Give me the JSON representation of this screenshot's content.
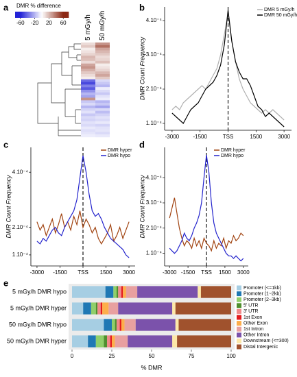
{
  "chart_data": [
    {
      "type": "heatmap",
      "panel": "a",
      "colorbar_title": "DMR % difference",
      "colorbar_lim": [
        -75,
        75
      ],
      "colorbar_ticks": [
        -60,
        -20,
        20,
        60
      ],
      "columns": [
        "5 mGy/h",
        "50 mGy/h"
      ],
      "values": [
        [
          10,
          30
        ],
        [
          15,
          40
        ],
        [
          5,
          25
        ],
        [
          8,
          20
        ],
        [
          12,
          15
        ],
        [
          20,
          10
        ],
        [
          18,
          12
        ],
        [
          10,
          18
        ],
        [
          25,
          5
        ],
        [
          30,
          8
        ],
        [
          22,
          12
        ],
        [
          15,
          20
        ],
        [
          10,
          25
        ],
        [
          5,
          15
        ],
        [
          -40,
          -10
        ],
        [
          -50,
          -15
        ],
        [
          -35,
          -20
        ],
        [
          -45,
          -5
        ],
        [
          -30,
          -10
        ],
        [
          -20,
          -15
        ],
        [
          -25,
          -8
        ],
        [
          30,
          -5
        ],
        [
          -15,
          -20
        ],
        [
          -10,
          -15
        ],
        [
          -20,
          -25
        ],
        [
          -12,
          -10
        ],
        [
          -8,
          -18
        ],
        [
          -15,
          -12
        ],
        [
          -10,
          -8
        ],
        [
          -12,
          -10
        ],
        [
          -8,
          -6
        ],
        [
          -10,
          -12
        ],
        [
          -6,
          -8
        ],
        [
          -9,
          -7
        ],
        [
          -7,
          -10
        ],
        [
          -5,
          -6
        ]
      ]
    },
    {
      "type": "line",
      "panel": "b",
      "y_label": "DMR Count Frequency",
      "legend": "upper right",
      "vline": 0,
      "x": [
        -3000,
        -2800,
        -2600,
        -2400,
        -2200,
        -2000,
        -1800,
        -1600,
        -1400,
        -1200,
        -1000,
        -800,
        -600,
        -400,
        -200,
        0,
        200,
        400,
        600,
        800,
        1000,
        1200,
        1400,
        1600,
        1800,
        2000,
        2200,
        2400,
        2600,
        2800,
        3000
      ],
      "xlim": [
        -3400,
        3400
      ],
      "xticks": [
        -3000,
        -1500,
        {
          "value": 0,
          "label": "TSS"
        },
        1500,
        3000
      ],
      "ylim": [
        8e-05,
        0.00044
      ],
      "yticks": [
        {
          "value": 0.0001,
          "label": "1.10⁻⁴"
        },
        {
          "value": 0.0002,
          "label": "2.10⁻⁴"
        },
        {
          "value": 0.0003,
          "label": "3.10⁻⁴"
        },
        {
          "value": 0.0004,
          "label": "4.10⁻⁴"
        }
      ],
      "series": [
        {
          "name": "DMR 5 mGy/h",
          "color": "#b0b0b0",
          "values": [
            0.00014,
            0.00015,
            0.00014,
            0.00016,
            0.00017,
            0.00018,
            0.00019,
            0.0002,
            0.00021,
            0.0002,
            0.00022,
            0.00024,
            0.00026,
            0.0003,
            0.00036,
            0.00042,
            0.00034,
            0.00028,
            0.00023,
            0.0002,
            0.00018,
            0.00016,
            0.00015,
            0.00014,
            0.00013,
            0.00014,
            0.00013,
            0.00014,
            0.00013,
            0.00012,
            0.00011
          ]
        },
        {
          "name": "DMR 50 mGy/h",
          "color": "#000000",
          "values": [
            0.00013,
            0.00012,
            0.00011,
            0.0001,
            0.00012,
            0.00014,
            0.00015,
            0.00016,
            0.00018,
            0.0002,
            0.00021,
            0.00022,
            0.00024,
            0.00027,
            0.00033,
            0.00043,
            0.00034,
            0.00028,
            0.00025,
            0.00023,
            0.00023,
            0.00021,
            0.00018,
            0.00015,
            0.00014,
            0.00012,
            0.00013,
            0.00012,
            0.00011,
            0.0001,
            9e-05
          ]
        }
      ]
    },
    {
      "type": "line",
      "panel": "c",
      "y_label": "DMR Count Frequency",
      "legend": "upper right",
      "vline": 0,
      "x": [
        -3000,
        -2800,
        -2600,
        -2400,
        -2200,
        -2000,
        -1800,
        -1600,
        -1400,
        -1200,
        -1000,
        -800,
        -600,
        -400,
        -200,
        0,
        200,
        400,
        600,
        800,
        1000,
        1200,
        1400,
        1600,
        1800,
        2000,
        2200,
        2400,
        2600,
        2800,
        3000
      ],
      "xlim": [
        -3400,
        3400
      ],
      "xticks": [
        -3000,
        -1500,
        {
          "value": 0,
          "label": "TSS"
        },
        1500,
        3000
      ],
      "ylim": [
        6e-05,
        0.00049
      ],
      "yticks": [
        {
          "value": 0.0001,
          "label": "1.10⁻⁴"
        },
        {
          "value": 0.0002,
          "label": "2.10⁻⁴"
        },
        {
          "value": 0.0004,
          "label": "4.10⁻⁴"
        }
      ],
      "series": [
        {
          "name": "DMR hyper",
          "color": "#a0420f",
          "values": [
            0.00022,
            0.00019,
            0.00021,
            0.00017,
            0.0002,
            0.00023,
            0.00018,
            0.00021,
            0.00025,
            0.0002,
            0.00022,
            0.00019,
            0.00024,
            0.00021,
            0.00026,
            0.0002,
            0.00023,
            0.00021,
            0.00018,
            0.0002,
            0.00016,
            0.00014,
            0.00016,
            0.00018,
            0.00021,
            0.00015,
            0.00017,
            0.0002,
            0.00016,
            0.00019,
            0.00022
          ]
        },
        {
          "name": "DMR hypo",
          "color": "#2222cc",
          "values": [
            0.00015,
            0.00014,
            0.00016,
            0.00015,
            0.00017,
            0.00019,
            0.0002,
            0.00018,
            0.00017,
            0.0002,
            0.00022,
            0.00024,
            0.00026,
            0.0003,
            0.00038,
            0.00046,
            0.0004,
            0.00032,
            0.00026,
            0.00024,
            0.00025,
            0.00023,
            0.0002,
            0.00018,
            0.00016,
            0.00015,
            0.00014,
            0.00013,
            0.00012,
            0.0001,
            9e-05
          ]
        }
      ]
    },
    {
      "type": "line",
      "panel": "d",
      "y_label": "DMR Count Frequency",
      "legend": "upper right",
      "vline": 0,
      "x": [
        -3000,
        -2800,
        -2600,
        -2400,
        -2200,
        -2000,
        -1800,
        -1600,
        -1400,
        -1200,
        -1000,
        -800,
        -600,
        -400,
        -200,
        0,
        200,
        400,
        600,
        800,
        1000,
        1200,
        1400,
        1600,
        1800,
        2000,
        2200,
        2400,
        2600,
        2800,
        3000
      ],
      "xlim": [
        -3400,
        3400
      ],
      "xticks": [
        -3000,
        -1500,
        {
          "value": 0,
          "label": "TSS"
        },
        1500,
        3000
      ],
      "ylim": [
        5e-05,
        0.00052
      ],
      "yticks": [
        {
          "value": 0.0001,
          "label": "1.10⁻⁴"
        },
        {
          "value": 0.0002,
          "label": "2.10⁻⁴"
        },
        {
          "value": 0.0003,
          "label": "3.10⁻⁴"
        },
        {
          "value": 0.0004,
          "label": "4.10⁻⁴"
        }
      ],
      "series": [
        {
          "name": "DMR hyper",
          "color": "#a0420f",
          "values": [
            0.00024,
            0.00028,
            0.00032,
            0.00026,
            0.0002,
            0.00016,
            0.00013,
            0.00015,
            0.00014,
            0.00012,
            0.00016,
            0.00013,
            0.00015,
            0.00012,
            0.00016,
            0.00014,
            0.00013,
            0.00011,
            0.00015,
            0.00012,
            0.00014,
            0.00013,
            0.00016,
            0.00012,
            0.00015,
            0.00014,
            0.00017,
            0.00015,
            0.00016,
            0.00018,
            0.00017
          ]
        },
        {
          "name": "DMR hypo",
          "color": "#2222cc",
          "values": [
            0.00012,
            0.00011,
            0.0001,
            0.00011,
            0.00013,
            0.00015,
            0.00018,
            0.00016,
            0.00015,
            0.00017,
            0.0002,
            0.00022,
            0.00025,
            0.0003,
            0.0004,
            0.00049,
            0.00042,
            0.0003,
            0.00022,
            0.00018,
            0.00016,
            0.00014,
            0.00012,
            0.0001,
            9e-05,
            9e-05,
            8e-05,
            9e-05,
            8e-05,
            7e-05,
            8e-05
          ]
        }
      ]
    },
    {
      "type": "stacked_barh",
      "panel": "e",
      "x_label": "% DMR",
      "categories": [
        "5 mGy/h DMR hypo",
        "5 mGy/h DMR hyper",
        "50 mGy/h DMR hypo",
        "50 mGy/h DMR hyper"
      ],
      "xlim": [
        0,
        100
      ],
      "xticks": [
        0,
        25,
        50,
        75,
        100
      ],
      "series": [
        {
          "name": "Promoter (<=1kb)",
          "color": "#a6cee3",
          "values": [
            21,
            7,
            20,
            10
          ]
        },
        {
          "name": "Promoter (1~2kb)",
          "color": "#1f78b4",
          "values": [
            5,
            5,
            5,
            5
          ]
        },
        {
          "name": "Promoter (2~3kb)",
          "color": "#8fcf6a",
          "values": [
            2,
            3,
            2,
            5
          ]
        },
        {
          "name": "5' UTR",
          "color": "#4f8f2f",
          "values": [
            1,
            1,
            1,
            2
          ]
        },
        {
          "name": "3' UTR",
          "color": "#f08a8a",
          "values": [
            2,
            2,
            2,
            2
          ]
        },
        {
          "name": "1st Exon",
          "color": "#e31a1c",
          "values": [
            1,
            1,
            1,
            1
          ]
        },
        {
          "name": "Other Exon",
          "color": "#fdae4b",
          "values": [
            2,
            4,
            2,
            2
          ]
        },
        {
          "name": "1st Intron",
          "color": "#e8a0a0",
          "values": [
            7,
            6,
            7,
            8
          ]
        },
        {
          "name": "Other Intron",
          "color": "#7b52ab",
          "values": [
            38,
            34,
            25,
            28
          ]
        },
        {
          "name": "Downstream (<=300)",
          "color": "#fde8a8",
          "values": [
            2,
            2,
            2,
            3
          ]
        },
        {
          "name": "Distal Intergenic",
          "color": "#a0522d",
          "values": [
            19,
            35,
            33,
            34
          ]
        }
      ]
    }
  ]
}
